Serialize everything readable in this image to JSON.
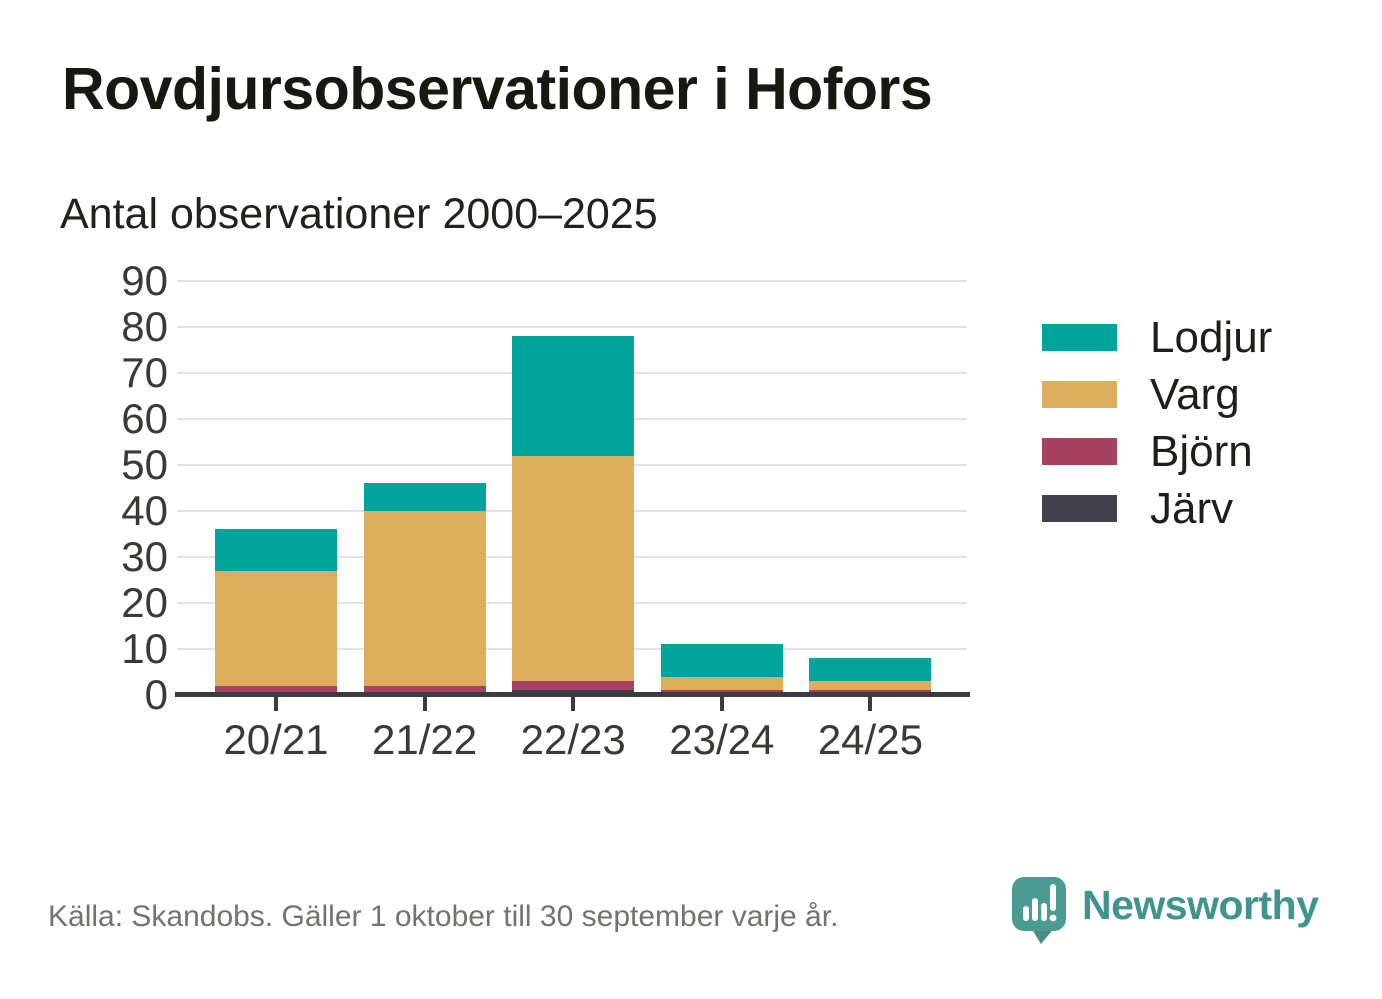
{
  "page": {
    "title": "Rovdjursobservationer i Hofors",
    "subtitle": "Antal observationer 2000–2025",
    "footer_source": "Källa: Skandobs. Gäller 1 oktober till 30 september varje år.",
    "brand": {
      "name": "Newsworthy",
      "logo_icon": "newsworthy-speech-bubble-chart-icon",
      "logo_color": "#4c9b93",
      "logo_tail_color": "#458d85",
      "text_color": "#3f948b"
    }
  },
  "chart_data": {
    "type": "bar",
    "stacked": true,
    "title": "Rovdjursobservationer i Hofors",
    "subtitle": "Antal observationer 2000–2025",
    "categories": [
      "20/21",
      "21/22",
      "22/23",
      "23/24",
      "24/25"
    ],
    "series": [
      {
        "name": "Järv",
        "color": "#44414e",
        "values": [
          0,
          0,
          1,
          0,
          0
        ]
      },
      {
        "name": "Björn",
        "color": "#a6415f",
        "values": [
          2,
          2,
          2,
          1,
          1
        ]
      },
      {
        "name": "Varg",
        "color": "#dcad5c",
        "values": [
          25,
          38,
          49,
          3,
          2
        ]
      },
      {
        "name": "Lodjur",
        "color": "#00a49a",
        "values": [
          9,
          6,
          26,
          7,
          5
        ]
      }
    ],
    "totals": [
      36,
      46,
      78,
      11,
      8
    ],
    "ylabel": "",
    "xlabel": "",
    "ylim": [
      0,
      90
    ],
    "yticks": [
      0,
      10,
      20,
      30,
      40,
      50,
      60,
      70,
      80,
      90
    ],
    "grid": true,
    "legend_position": "right",
    "legend_order": [
      "Lodjur",
      "Varg",
      "Björn",
      "Järv"
    ],
    "colors": {
      "axis": "#3b3b43",
      "gridline": "#e2e2e2",
      "tick_label": "#3a3a35"
    }
  }
}
